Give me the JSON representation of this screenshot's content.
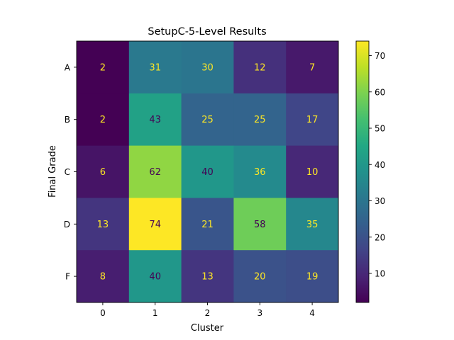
{
  "chart_data": {
    "type": "heatmap",
    "title": "SetupC-5-Level Results",
    "xlabel": "Cluster",
    "ylabel": "Final Grade",
    "x_categories": [
      "0",
      "1",
      "2",
      "3",
      "4"
    ],
    "y_categories": [
      "A",
      "B",
      "C",
      "D",
      "F"
    ],
    "values": [
      [
        2,
        31,
        30,
        12,
        7
      ],
      [
        2,
        43,
        25,
        25,
        17
      ],
      [
        6,
        62,
        40,
        36,
        10
      ],
      [
        13,
        74,
        21,
        58,
        35
      ],
      [
        8,
        40,
        13,
        20,
        19
      ]
    ],
    "colormap": "viridis",
    "vmin": 2,
    "vmax": 74,
    "colorbar_ticks": [
      10,
      20,
      30,
      40,
      50,
      60,
      70
    ],
    "annotation_colors": {
      "on_dark": "#fde725",
      "on_light": "#440154"
    }
  }
}
